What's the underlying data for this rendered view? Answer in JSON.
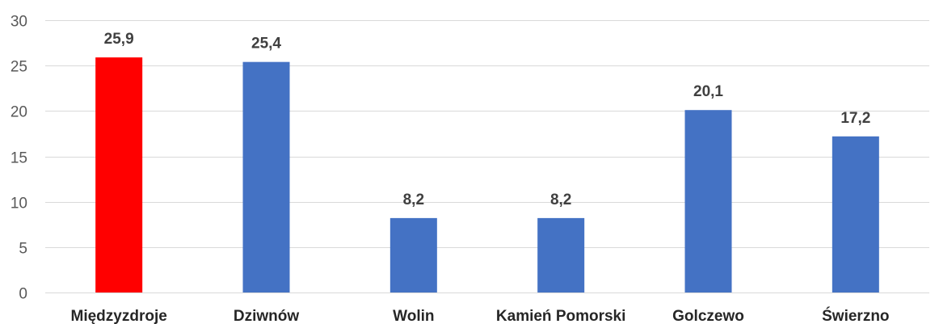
{
  "chart_data": {
    "type": "bar",
    "categories": [
      "Międzyzdroje",
      "Dziwnów",
      "Wolin",
      "Kamień Pomorski",
      "Golczewo",
      "Świerzno"
    ],
    "values": [
      25.9,
      25.4,
      8.2,
      8.2,
      20.1,
      17.2
    ],
    "value_labels": [
      "25,9",
      "25,4",
      "8,2",
      "8,2",
      "20,1",
      "17,2"
    ],
    "title": "",
    "xlabel": "",
    "ylabel": "",
    "ylim": [
      0,
      30
    ],
    "yticks": [
      0,
      5,
      10,
      15,
      20,
      25,
      30
    ],
    "ytick_labels": [
      "0",
      "5",
      "10",
      "15",
      "20",
      "25",
      "30"
    ],
    "grid": true,
    "legend": "none",
    "bar_colors": [
      "#ff0000",
      "#4472c4",
      "#4472c4",
      "#4472c4",
      "#4472c4",
      "#4472c4"
    ],
    "colors": {
      "highlight": "#ff0000",
      "default_bar": "#4472c4"
    }
  }
}
